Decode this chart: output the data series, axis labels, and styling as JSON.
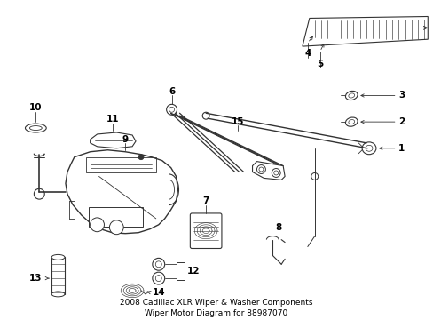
{
  "title": "2008 Cadillac XLR Wiper & Washer Components\nWiper Motor Diagram for 88987070",
  "bg_color": "#ffffff",
  "line_color": "#333333",
  "text_color": "#000000",
  "label_fontsize": 7.5,
  "title_fontsize": 6.5,
  "figsize": [
    4.89,
    3.6
  ],
  "dpi": 100
}
